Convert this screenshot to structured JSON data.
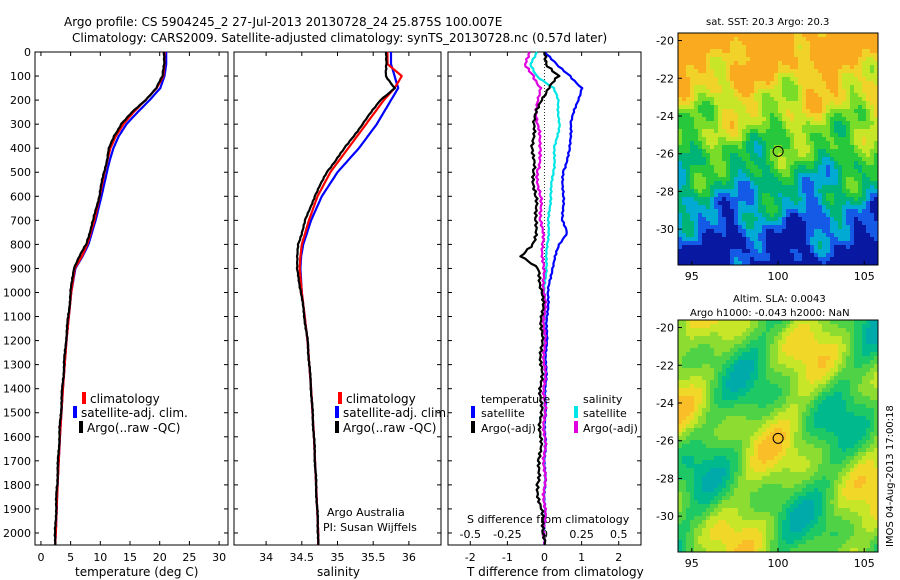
{
  "header": {
    "title_line1": "Argo profile: CS 5904245_2 27-Jul-2013 20130728_24 25.875S 100.007E",
    "title_line2": "Climatology: CARS2009. Satellite-adjusted climatology: synTS_20130728.nc (0.57d later)"
  },
  "colors": {
    "climatology": "#ff0000",
    "satellite_clim": "#0000ff",
    "argo": "#000000",
    "salinity_satellite": "#00e5e5",
    "salinity_argo": "#e000e0"
  },
  "legend_profiles": {
    "climatology": "climatology",
    "satellite": "satellite-adj. clim.",
    "argo": "Argo(..raw -QC)"
  },
  "legend_diff": {
    "temperature_header": "temperature",
    "salinity_header": "salinity",
    "t_satellite": "satellite",
    "t_argo": "Argo(-adj)",
    "s_satellite": "satellite",
    "s_argo": "Argo(-adj)"
  },
  "credit": {
    "line1": "Argo Australia",
    "line2": "PI: Susan Wijffels"
  },
  "maps": {
    "sst_title": "sat. SST: 20.3 Argo: 20.3",
    "sla_title1": "Altim. SLA: 0.0043",
    "sla_title2": "Argo h1000: -0.043 h2000: NaN",
    "x_ticks": [
      "95",
      "100",
      "105"
    ],
    "y_ticks": [
      "-20",
      "-22",
      "-24",
      "-26",
      "-28",
      "-30"
    ]
  },
  "stamp": "IMOS 04-Aug-2013 17:00:18",
  "chart_data": [
    {
      "type": "line",
      "name": "temperature profile",
      "xlabel": "temperature (deg C)",
      "ylabel": "",
      "xlim": [
        -1,
        31.5
      ],
      "ylim": [
        2050,
        0
      ],
      "x_ticks": [
        "0",
        "5",
        "10",
        "15",
        "20",
        "25",
        "30"
      ],
      "y_ticks": [
        "0",
        "100",
        "200",
        "300",
        "400",
        "500",
        "600",
        "700",
        "800",
        "900",
        "1000",
        "1100",
        "1200",
        "1300",
        "1400",
        "1500",
        "1600",
        "1700",
        "1800",
        "1900",
        "2000"
      ],
      "series": [
        {
          "name": "climatology",
          "depth": [
            0,
            50,
            100,
            150,
            200,
            250,
            300,
            350,
            400,
            450,
            500,
            600,
            700,
            800,
            850,
            900,
            1000,
            1200,
            1400,
            1600,
            1800,
            2000,
            2050
          ],
          "values": [
            20.8,
            20.8,
            20.6,
            19.5,
            17.6,
            15.6,
            13.9,
            12.6,
            11.7,
            11.2,
            10.7,
            9.9,
            9.0,
            7.8,
            6.9,
            5.7,
            5.1,
            4.3,
            3.7,
            3.2,
            2.8,
            2.5,
            2.4
          ]
        },
        {
          "name": "satellite-adj. clim.",
          "depth": [
            0,
            50,
            100,
            150,
            200,
            250,
            300,
            350,
            400,
            450,
            500,
            600,
            700,
            800,
            850,
            900,
            1000,
            1200,
            1400,
            1600,
            1800,
            2000,
            2050
          ],
          "values": [
            21.1,
            21.1,
            20.8,
            20.1,
            18.3,
            16.3,
            14.4,
            13.1,
            12.2,
            11.6,
            11.1,
            10.2,
            9.2,
            8.0,
            7.0,
            5.8,
            5.1,
            4.3,
            3.7,
            3.2,
            2.8,
            2.5,
            2.4
          ]
        },
        {
          "name": "Argo(..raw -QC)",
          "depth": [
            0,
            50,
            100,
            150,
            200,
            250,
            300,
            350,
            400,
            450,
            500,
            600,
            700,
            800,
            850,
            900,
            1000,
            1200,
            1400,
            1600,
            1800,
            2000,
            2050
          ],
          "values": [
            20.7,
            20.7,
            20.5,
            19.4,
            17.6,
            15.4,
            13.5,
            12.3,
            11.5,
            11.1,
            10.6,
            9.8,
            8.8,
            7.6,
            6.5,
            5.5,
            5.0,
            4.2,
            3.6,
            3.1,
            2.7,
            2.4,
            2.4
          ]
        }
      ]
    },
    {
      "type": "line",
      "name": "salinity profile",
      "xlabel": "salinity",
      "xlim": [
        33.55,
        36.45
      ],
      "ylim": [
        2050,
        0
      ],
      "x_ticks": [
        "34",
        "34.5",
        "35",
        "35.5",
        "36"
      ],
      "series": [
        {
          "name": "climatology",
          "depth": [
            0,
            50,
            100,
            150,
            200,
            300,
            400,
            500,
            600,
            700,
            800,
            850,
            900,
            1000,
            1200,
            1400,
            1600,
            1800,
            2000,
            2050
          ],
          "values": [
            35.7,
            35.7,
            35.9,
            35.8,
            35.65,
            35.4,
            35.15,
            34.9,
            34.72,
            34.6,
            34.5,
            34.48,
            34.47,
            34.5,
            34.58,
            34.63,
            34.67,
            34.7,
            34.73,
            34.73
          ]
        },
        {
          "name": "satellite-adj. clim.",
          "depth": [
            0,
            50,
            100,
            150,
            200,
            300,
            400,
            500,
            600,
            700,
            800,
            850,
            900,
            1000,
            1200,
            1400,
            1600,
            1800,
            2000,
            2050
          ],
          "values": [
            35.75,
            35.75,
            35.8,
            35.85,
            35.75,
            35.55,
            35.3,
            35.0,
            34.78,
            34.63,
            34.52,
            34.49,
            34.48,
            34.5,
            34.58,
            34.63,
            34.67,
            34.7,
            34.73,
            34.73
          ]
        },
        {
          "name": "Argo(..raw -QC)",
          "depth": [
            0,
            50,
            100,
            150,
            200,
            300,
            400,
            500,
            600,
            700,
            800,
            850,
            900,
            1000,
            1200,
            1400,
            1600,
            1800,
            2000,
            2050
          ],
          "values": [
            35.68,
            35.68,
            35.68,
            35.8,
            35.6,
            35.35,
            35.1,
            34.85,
            34.68,
            34.55,
            34.45,
            34.44,
            34.43,
            34.49,
            34.58,
            34.63,
            34.67,
            34.7,
            34.73,
            34.73
          ]
        }
      ]
    },
    {
      "type": "line",
      "name": "difference from climatology",
      "xlabel": "T difference from climatology",
      "xlabel_top": "S difference from climatology",
      "xlim": [
        -2.6,
        2.6
      ],
      "ylim": [
        2050,
        0
      ],
      "x_ticks": [
        "-2",
        "-1",
        "0",
        "1",
        "2"
      ],
      "x_ticks_top": [
        "-0.5",
        "-0.25",
        "0",
        "0.25",
        "0.5"
      ],
      "series": [
        {
          "name": "T satellite",
          "depth": [
            0,
            50,
            100,
            150,
            200,
            300,
            400,
            500,
            600,
            700,
            750,
            800,
            900,
            1000,
            1200,
            1500,
            1800,
            2000,
            2050
          ],
          "values": [
            0,
            0.3,
            0.7,
            1.0,
            0.9,
            0.7,
            0.7,
            0.5,
            0.5,
            0.5,
            0.6,
            0.4,
            0.2,
            0.1,
            0.05,
            0.02,
            0.01,
            0.0,
            0.0
          ]
        },
        {
          "name": "T Argo(-adj)",
          "depth": [
            0,
            50,
            100,
            150,
            200,
            300,
            400,
            500,
            600,
            700,
            800,
            850,
            900,
            1000,
            1200,
            1500,
            1700,
            1800,
            2000,
            2050
          ],
          "values": [
            0,
            0.0,
            0.4,
            0.1,
            -0.1,
            -0.3,
            -0.3,
            -0.3,
            -0.25,
            -0.2,
            -0.3,
            -0.6,
            -0.2,
            -0.05,
            -0.08,
            -0.1,
            -0.12,
            -0.2,
            0.0,
            0.0
          ]
        },
        {
          "name": "S satellite",
          "depth": [
            0,
            50,
            100,
            150,
            200,
            300,
            400,
            500,
            600,
            700,
            800,
            900,
            1000,
            1200,
            1500,
            1800,
            2000,
            2050
          ],
          "values": [
            -0.05,
            -0.1,
            -0.05,
            0.06,
            0.09,
            0.1,
            0.07,
            0.06,
            0.04,
            0.03,
            0.02,
            0.01,
            0.0,
            0.0,
            0.0,
            0.0,
            0.0,
            0.0
          ]
        },
        {
          "name": "S Argo(-adj)",
          "depth": [
            0,
            50,
            100,
            150,
            200,
            300,
            400,
            500,
            600,
            700,
            800,
            900,
            1000,
            1200,
            1500,
            1800,
            2000,
            2050
          ],
          "values": [
            -0.1,
            -0.14,
            -0.07,
            -0.03,
            -0.05,
            -0.05,
            -0.02,
            -0.05,
            -0.03,
            -0.02,
            -0.01,
            -0.01,
            0.0,
            0.0,
            0.0,
            0.0,
            0.0,
            0.0
          ]
        }
      ]
    },
    {
      "type": "heatmap",
      "name": "sat. SST map",
      "xlim": [
        94.2,
        105.8
      ],
      "ylim": [
        -31.9,
        -19.6
      ],
      "x_ticks": [
        "95",
        "100",
        "105"
      ],
      "y_ticks": [
        "-20",
        "-22",
        "-24",
        "-26",
        "-28",
        "-30"
      ],
      "argo_position": [
        100.007,
        -25.875
      ]
    },
    {
      "type": "heatmap",
      "name": "Altim. SLA map",
      "xlim": [
        94.2,
        105.8
      ],
      "ylim": [
        -31.9,
        -19.6
      ],
      "x_ticks": [
        "95",
        "100",
        "105"
      ],
      "y_ticks": [
        "-20",
        "-22",
        "-24",
        "-26",
        "-28",
        "-30"
      ],
      "argo_position": [
        100.007,
        -25.875
      ]
    }
  ]
}
